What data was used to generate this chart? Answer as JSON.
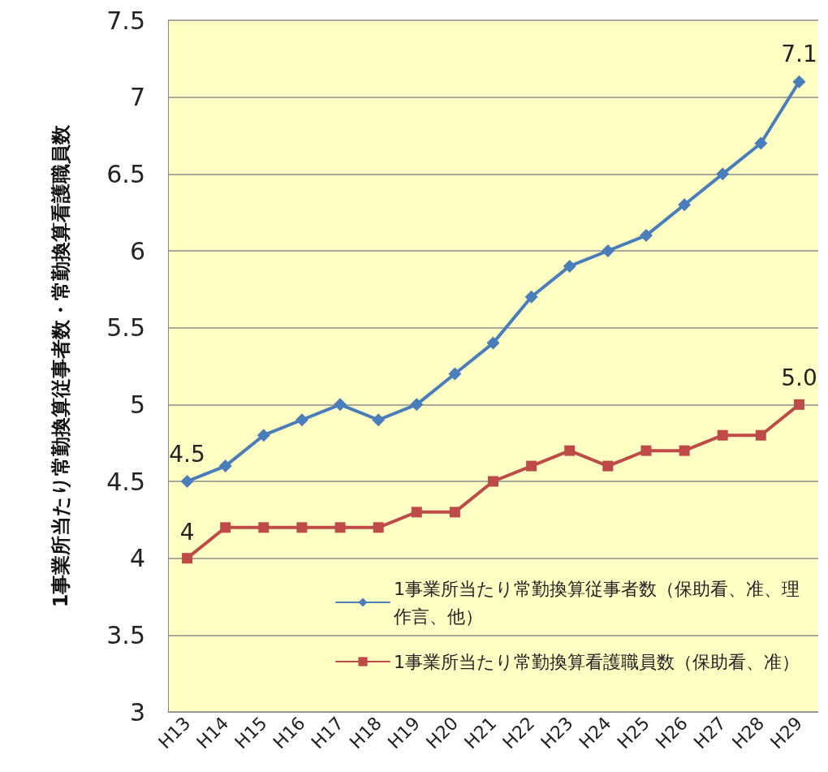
{
  "chart_data": {
    "type": "line",
    "ylabel": "1事業所当たり常勤換算従事者数・常勤換算看護職員数",
    "categories": [
      "H13",
      "H14",
      "H15",
      "H16",
      "H17",
      "H18",
      "H19",
      "H20",
      "H21",
      "H22",
      "H23",
      "H24",
      "H25",
      "H26",
      "H27",
      "H28",
      "H29"
    ],
    "series": [
      {
        "name": "1事業所当たり常勤換算従事者数（保助看、准、理作言、他）",
        "color": "#4a7ebb",
        "marker": "diamond",
        "values": [
          4.5,
          4.6,
          4.8,
          4.9,
          5.0,
          4.9,
          5.0,
          5.2,
          5.4,
          5.7,
          5.9,
          6.0,
          6.1,
          6.3,
          6.5,
          6.7,
          7.1
        ],
        "value_labels": [
          "4.5",
          null,
          null,
          null,
          null,
          null,
          null,
          null,
          null,
          null,
          null,
          null,
          null,
          null,
          null,
          null,
          "7.1"
        ]
      },
      {
        "name": "1事業所当たり常勤換算看護職員数（保助看、准）",
        "color": "#be4b48",
        "marker": "square",
        "values": [
          4.0,
          4.2,
          4.2,
          4.2,
          4.2,
          4.2,
          4.3,
          4.3,
          4.5,
          4.6,
          4.7,
          4.6,
          4.7,
          4.7,
          4.8,
          4.8,
          5.0
        ],
        "value_labels": [
          "4",
          null,
          null,
          null,
          null,
          null,
          null,
          null,
          null,
          null,
          null,
          null,
          null,
          null,
          null,
          null,
          "5.0"
        ]
      }
    ],
    "ylim": [
      3,
      7.5
    ],
    "yticks": [
      3,
      3.5,
      4,
      4.5,
      5,
      5.5,
      6,
      6.5,
      7,
      7.5
    ],
    "grid": "y",
    "legend": "bottom right",
    "line_style": "solid"
  }
}
